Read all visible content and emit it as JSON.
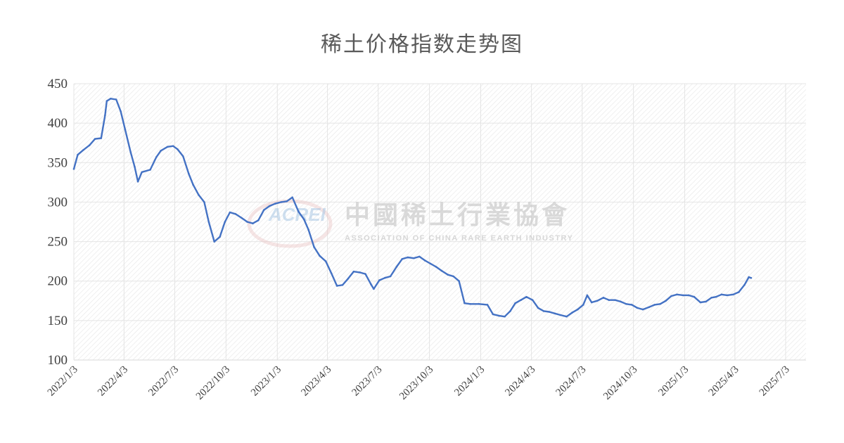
{
  "chart_data": {
    "type": "line",
    "title": "稀土价格指数走势图",
    "xlabel": "",
    "ylabel": "",
    "ylim": [
      100,
      450
    ],
    "yticks": [
      100,
      150,
      200,
      250,
      300,
      350,
      400,
      450
    ],
    "xticks": [
      "2022/1/3",
      "2022/4/3",
      "2022/7/3",
      "2022/10/3",
      "2023/1/3",
      "2023/4/3",
      "2023/7/3",
      "2023/10/3",
      "2024/1/3",
      "2024/4/3",
      "2024/7/3",
      "2024/10/3",
      "2025/1/3",
      "2025/4/3",
      "2025/7/3"
    ],
    "grid": true,
    "legend": "none",
    "series": [
      {
        "color": "#4472c4",
        "points": [
          [
            "2022/1/3",
            342
          ],
          [
            "2022/1/10",
            360
          ],
          [
            "2022/1/20",
            366
          ],
          [
            "2022/1/31",
            372
          ],
          [
            "2022/2/10",
            380
          ],
          [
            "2022/2/21",
            381
          ],
          [
            "2022/2/28",
            410
          ],
          [
            "2022/3/3",
            428
          ],
          [
            "2022/3/10",
            431
          ],
          [
            "2022/3/20",
            430
          ],
          [
            "2022/3/28",
            415
          ],
          [
            "2022/4/5",
            392
          ],
          [
            "2022/4/15",
            363
          ],
          [
            "2022/4/22",
            345
          ],
          [
            "2022/4/28",
            326
          ],
          [
            "2022/5/5",
            338
          ],
          [
            "2022/5/20",
            341
          ],
          [
            "2022/5/31",
            357
          ],
          [
            "2022/6/8",
            365
          ],
          [
            "2022/6/20",
            370
          ],
          [
            "2022/6/30",
            371
          ],
          [
            "2022/7/8",
            367
          ],
          [
            "2022/7/18",
            358
          ],
          [
            "2022/7/28",
            336
          ],
          [
            "2022/8/5",
            322
          ],
          [
            "2022/8/15",
            309
          ],
          [
            "2022/8/25",
            300
          ],
          [
            "2022/9/2",
            275
          ],
          [
            "2022/9/12",
            250
          ],
          [
            "2022/9/22",
            256
          ],
          [
            "2022/10/1",
            275
          ],
          [
            "2022/10/10",
            287
          ],
          [
            "2022/10/20",
            285
          ],
          [
            "2022/10/31",
            280
          ],
          [
            "2022/11/10",
            275
          ],
          [
            "2022/11/20",
            273
          ],
          [
            "2022/11/30",
            277
          ],
          [
            "2022/12/10",
            290
          ],
          [
            "2022/12/20",
            295
          ],
          [
            "2022/12/30",
            298
          ],
          [
            "2023/1/10",
            300
          ],
          [
            "2023/1/20",
            301
          ],
          [
            "2023/1/30",
            306
          ],
          [
            "2023/2/10",
            288
          ],
          [
            "2023/2/20",
            278
          ],
          [
            "2023/2/28",
            265
          ],
          [
            "2023/3/10",
            243
          ],
          [
            "2023/3/20",
            232
          ],
          [
            "2023/3/31",
            225
          ],
          [
            "2023/4/10",
            210
          ],
          [
            "2023/4/20",
            194
          ],
          [
            "2023/4/30",
            195
          ],
          [
            "2023/5/10",
            203
          ],
          [
            "2023/5/20",
            212
          ],
          [
            "2023/5/31",
            211
          ],
          [
            "2023/6/10",
            209
          ],
          [
            "2023/6/20",
            196
          ],
          [
            "2023/6/25",
            190
          ],
          [
            "2023/7/5",
            201
          ],
          [
            "2023/7/15",
            204
          ],
          [
            "2023/7/25",
            206
          ],
          [
            "2023/8/5",
            218
          ],
          [
            "2023/8/15",
            228
          ],
          [
            "2023/8/25",
            230
          ],
          [
            "2023/9/5",
            229
          ],
          [
            "2023/9/15",
            231
          ],
          [
            "2023/9/25",
            226
          ],
          [
            "2023/10/5",
            222
          ],
          [
            "2023/10/15",
            218
          ],
          [
            "2023/10/25",
            213
          ],
          [
            "2023/11/5",
            208
          ],
          [
            "2023/11/15",
            206
          ],
          [
            "2023/11/25",
            200
          ],
          [
            "2023/12/5",
            172
          ],
          [
            "2023/12/15",
            171
          ],
          [
            "2023/12/31",
            171
          ],
          [
            "2024/1/15",
            170
          ],
          [
            "2024/1/25",
            158
          ],
          [
            "2024/2/5",
            156
          ],
          [
            "2024/2/15",
            155
          ],
          [
            "2024/2/25",
            162
          ],
          [
            "2024/3/5",
            172
          ],
          [
            "2024/3/15",
            176
          ],
          [
            "2024/3/25",
            180
          ],
          [
            "2024/4/5",
            176
          ],
          [
            "2024/4/15",
            166
          ],
          [
            "2024/4/25",
            162
          ],
          [
            "2024/5/5",
            161
          ],
          [
            "2024/5/15",
            159
          ],
          [
            "2024/5/25",
            157
          ],
          [
            "2024/6/5",
            155
          ],
          [
            "2024/6/15",
            160
          ],
          [
            "2024/6/25",
            164
          ],
          [
            "2024/7/5",
            170
          ],
          [
            "2024/7/12",
            182
          ],
          [
            "2024/7/20",
            173
          ],
          [
            "2024/7/30",
            175
          ],
          [
            "2024/8/10",
            179
          ],
          [
            "2024/8/20",
            176
          ],
          [
            "2024/8/31",
            176
          ],
          [
            "2024/9/10",
            174
          ],
          [
            "2024/9/20",
            171
          ],
          [
            "2024/9/30",
            170
          ],
          [
            "2024/10/10",
            166
          ],
          [
            "2024/10/20",
            164
          ],
          [
            "2024/10/31",
            167
          ],
          [
            "2024/11/10",
            170
          ],
          [
            "2024/11/20",
            171
          ],
          [
            "2024/11/30",
            175
          ],
          [
            "2024/12/10",
            181
          ],
          [
            "2024/12/20",
            183
          ],
          [
            "2024/12/31",
            182
          ],
          [
            "2025/1/10",
            182
          ],
          [
            "2025/1/20",
            180
          ],
          [
            "2025/1/31",
            173
          ],
          [
            "2025/2/10",
            174
          ],
          [
            "2025/2/20",
            179
          ],
          [
            "2025/2/28",
            180
          ],
          [
            "2025/3/10",
            183
          ],
          [
            "2025/3/20",
            182
          ],
          [
            "2025/3/31",
            183
          ],
          [
            "2025/4/10",
            186
          ],
          [
            "2025/4/20",
            195
          ],
          [
            "2025/4/28",
            205
          ],
          [
            "2025/5/2",
            204
          ]
        ]
      }
    ]
  },
  "watermark": {
    "logo": "ACREI",
    "name": "中國稀土行業協會",
    "name_en": "ASSOCIATION OF CHINA RARE EARTH INDUSTRY"
  }
}
